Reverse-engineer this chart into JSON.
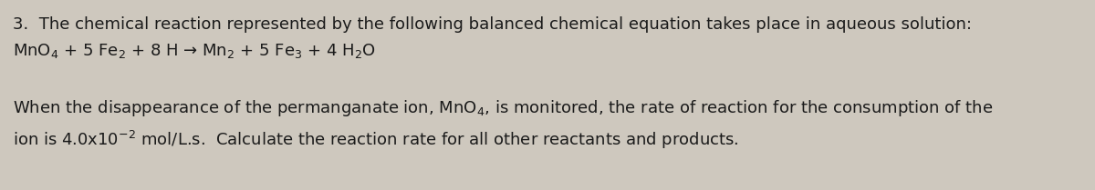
{
  "background_color": "#cec8be",
  "text_color": "#1a1a1a",
  "figsize": [
    12.0,
    2.09
  ],
  "dpi": 100,
  "line1": "3.  The chemical reaction represented by the following balanced chemical equation takes place in aqueous solution:",
  "line2": "MnO$_{4}$ + 5 Fe$_{2}$ + 8 H → Mn$_{2}$ + 5 Fe$_{3}$ + 4 H$_{2}$O",
  "line3": "When the disappearance of the permanganate ion, MnO$_{4}$, is monitored, the rate of reaction for the consumption of the",
  "line4": "ion is 4.0x10$^{-2}$ mol/L.s.  Calculate the reaction rate for all other reactants and products.",
  "font_size": 13.0,
  "font_family": "DejaVu Sans"
}
